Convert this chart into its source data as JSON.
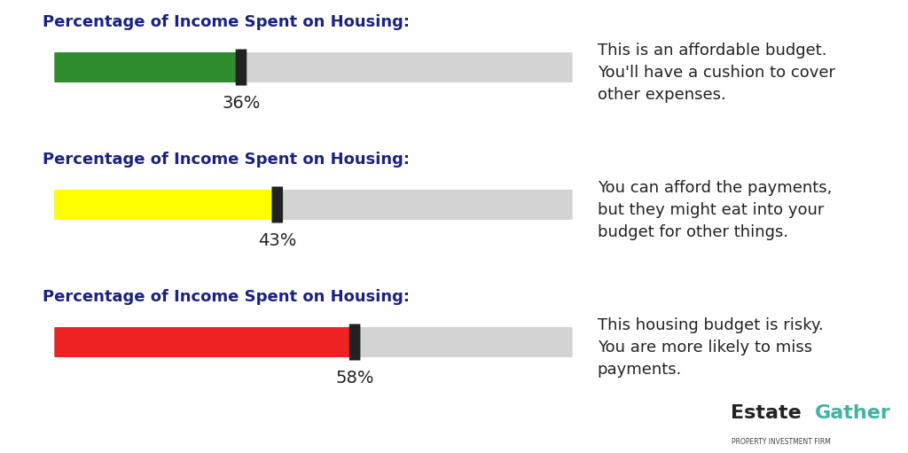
{
  "title": "Percentage of Income Spent on Housing:",
  "bg_color": "#ffffff",
  "bars": [
    {
      "percentage": 36,
      "label": "36%",
      "bar_color": "#2e8b2e",
      "description": "This is an affordable budget.\nYou'll have a cushion to cover\nother expenses."
    },
    {
      "percentage": 43,
      "label": "43%",
      "bar_color": "#ffff00",
      "description": "You can afford the payments,\nbut they might eat into your\nbudget for other things."
    },
    {
      "percentage": 58,
      "label": "58%",
      "bar_color": "#ee2222",
      "description": "This housing budget is risky.\nYou are more likely to miss\npayments."
    }
  ],
  "bar_bg_color": "#d3d3d3",
  "marker_color": "#222222",
  "title_color": "#1a237e",
  "label_color": "#222222",
  "desc_color": "#222222",
  "logo_estate_color": "#222222",
  "logo_gather_color": "#40b3a2",
  "logo_sub_color": "#444444",
  "title_fontsize": 13,
  "label_fontsize": 14,
  "desc_fontsize": 13,
  "bar_total": 100
}
